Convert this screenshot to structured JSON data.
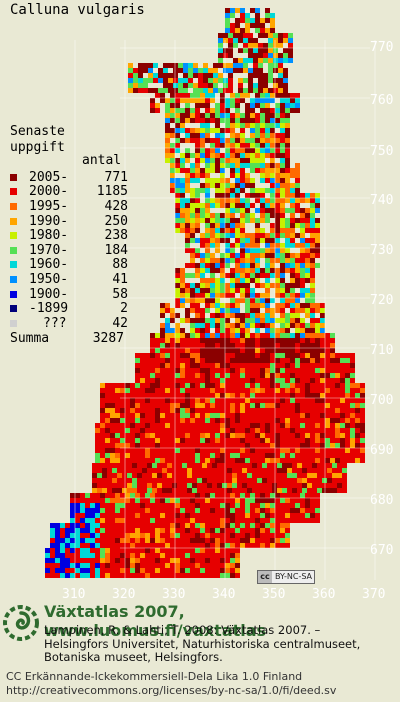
{
  "title": "Calluna vulgaris",
  "legend": {
    "heading_line1": "Senaste",
    "heading_line2": "uppgift",
    "count_header": "antal",
    "rows": [
      {
        "label": "2005-",
        "count": "771",
        "color": "#8b0000"
      },
      {
        "label": "2000-",
        "count": "1185",
        "color": "#e60000"
      },
      {
        "label": "1995-",
        "count": "428",
        "color": "#ff6a00"
      },
      {
        "label": "1990-",
        "count": "250",
        "color": "#ffa500"
      },
      {
        "label": "1980-",
        "count": "238",
        "color": "#c8f000"
      },
      {
        "label": "1970-",
        "count": "184",
        "color": "#55e055"
      },
      {
        "label": "1960-",
        "count": "88",
        "color": "#00d8d8"
      },
      {
        "label": "1950-",
        "count": "41",
        "color": "#0090ff"
      },
      {
        "label": "1900-",
        "count": "58",
        "color": "#0000e0"
      },
      {
        "label": "-1899",
        "count": "2",
        "color": "#00007a"
      },
      {
        "label": "???",
        "count": "42",
        "color": "#d0d0d0"
      }
    ],
    "total_label": "Summa",
    "total_count": "3287"
  },
  "y_ticks": [
    "770",
    "760",
    "750",
    "740",
    "730",
    "720",
    "710",
    "700",
    "690",
    "680",
    "670"
  ],
  "x_ticks": [
    "310",
    "320",
    "330",
    "340",
    "350",
    "360",
    "370"
  ],
  "cc_badge": "BY-NC-SA",
  "site_line": "Växtatlas 2007, www.luomus.fi/vaxtatlas",
  "citation": [
    "Lampinen, R. & Lahti, T. 2008: Växtatlas 2007. –",
    "Helsingfors Universitet, Naturhistoriska centralmuseet,",
    "Botaniska museet, Helsingfors."
  ],
  "license": [
    "CC Erkännande-Ickekommersiell-Dela Lika 1.0 Finland",
    "http://creativecommons.org/licenses/by-nc-sa/1.0/fi/deed.sv"
  ],
  "colors": {
    "background": "#e9e9d4",
    "grid": "#ffffff",
    "logo_green": "#2f6b2f"
  }
}
